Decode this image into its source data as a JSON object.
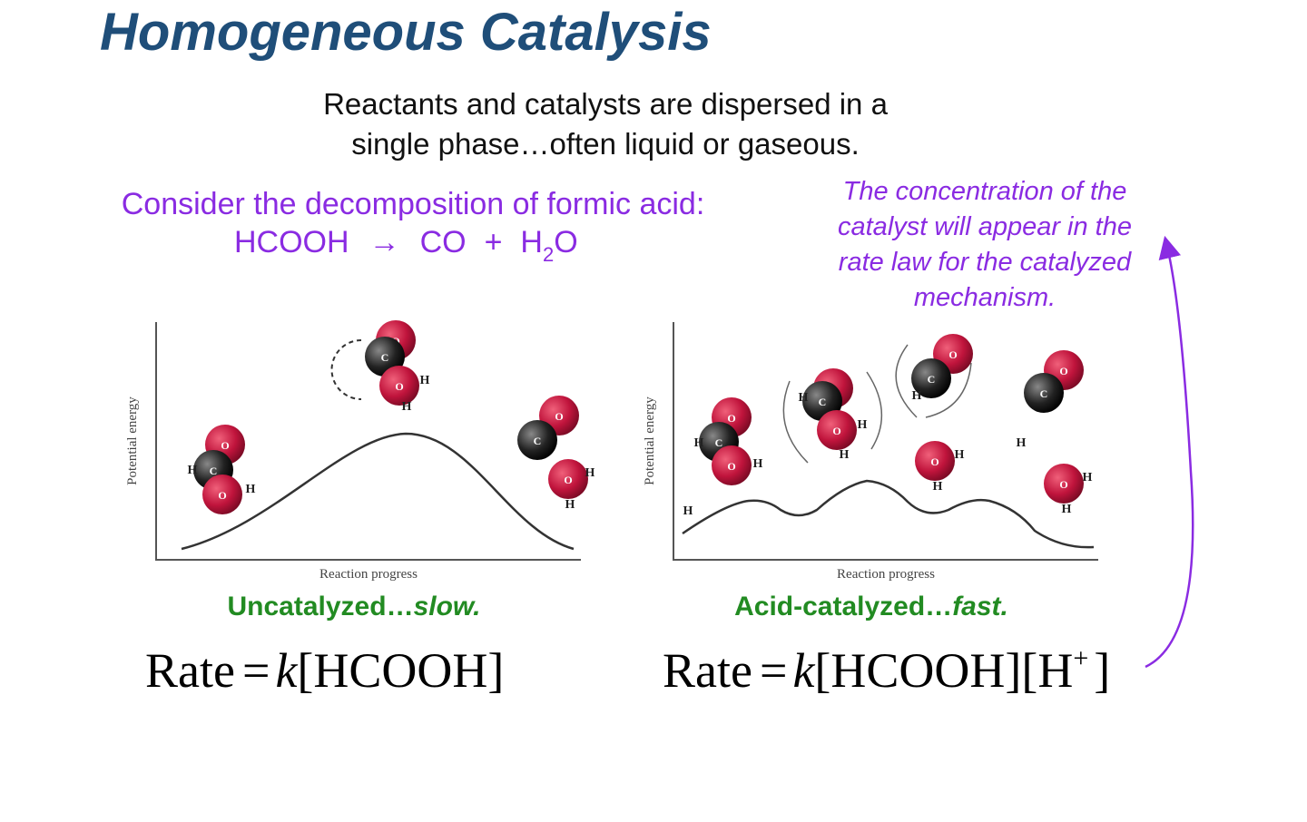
{
  "title": "Homogeneous Catalysis",
  "intro": [
    "Reactants and catalysts are dispersed in a",
    "single phase…often liquid or gaseous."
  ],
  "consider": "Consider the decomposition of formic acid:",
  "equation": {
    "reactant": "HCOOH",
    "arrow": "→",
    "product1": "CO",
    "plus": "+",
    "product2_a": "H",
    "product2_sub": "2",
    "product2_b": "O"
  },
  "note": [
    "The concentration of the",
    "catalyst will appear in the",
    "rate law for the catalyzed",
    "mechanism."
  ],
  "diagrams": [
    {
      "y_label": "Potential energy",
      "x_label": "Reaction progress",
      "caption_a": "Uncatalyzed…",
      "caption_b": "slow.",
      "rate": {
        "word": "Rate",
        "eq": "=",
        "k": "k",
        "rest": "[HCOOH]"
      },
      "atoms": [
        "O",
        "C",
        "O",
        "H",
        "H",
        "O",
        "C",
        "O",
        "H",
        "H",
        "O",
        "C",
        "O",
        "H",
        "H"
      ]
    },
    {
      "y_label": "Potential energy",
      "x_label": "Reaction progress",
      "caption_a": "Acid-catalyzed…",
      "caption_b": "fast.",
      "rate": {
        "word": "Rate",
        "eq": "=",
        "k": "k",
        "rest": "[HCOOH][H",
        "sup": "+",
        "close": "]"
      },
      "atoms": [
        "O",
        "C",
        "O",
        "H",
        "H",
        "H",
        "O",
        "C",
        "O",
        "H",
        "H",
        "H",
        "O",
        "C",
        "H",
        "O",
        "H",
        "H",
        "O",
        "C",
        "H",
        "O",
        "H",
        "H"
      ]
    }
  ]
}
